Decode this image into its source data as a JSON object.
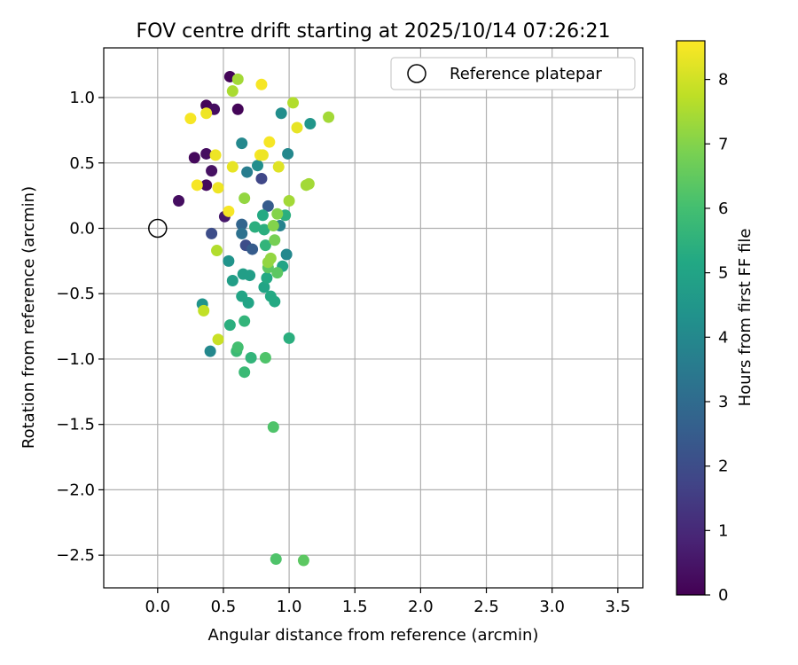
{
  "chart_data": {
    "type": "scatter",
    "title": "FOV centre drift starting at 2025/10/14 07:26:21",
    "xlabel": "Angular distance from reference (arcmin)",
    "ylabel": "Rotation from reference (arcmin)",
    "xlim": [
      -0.41,
      3.69
    ],
    "ylim": [
      -2.75,
      1.38
    ],
    "xticks": [
      0.0,
      0.5,
      1.0,
      1.5,
      2.0,
      2.5,
      3.0,
      3.5
    ],
    "xtick_labels": [
      "0.0",
      "0.5",
      "1.0",
      "1.5",
      "2.0",
      "2.5",
      "3.0",
      "3.5"
    ],
    "yticks": [
      1.0,
      0.5,
      0.0,
      -0.5,
      -1.0,
      -1.5,
      -2.0,
      -2.5
    ],
    "ytick_labels": [
      "1.0",
      "0.5",
      "0.0",
      "−0.5",
      "−1.0",
      "−1.5",
      "−2.0",
      "−2.5"
    ],
    "grid": true,
    "legend": {
      "placement": "top-right",
      "entries": [
        "Reference platepar"
      ]
    },
    "reference_point": {
      "x": 0.0,
      "y": 0.0,
      "label": "Reference platepar"
    },
    "colorbar": {
      "label": "Hours from first FF file",
      "range": [
        0,
        8.6
      ],
      "ticks": [
        0,
        1,
        2,
        3,
        4,
        5,
        6,
        7,
        8
      ],
      "tick_labels": [
        "0",
        "1",
        "2",
        "3",
        "4",
        "5",
        "6",
        "7",
        "8"
      ],
      "colormap": "viridis"
    },
    "points": [
      {
        "x": 0.55,
        "y": 1.16,
        "h": 0.1
      },
      {
        "x": 0.37,
        "y": 0.94,
        "h": 0.1
      },
      {
        "x": 0.43,
        "y": 0.91,
        "h": 0.3
      },
      {
        "x": 0.61,
        "y": 0.91,
        "h": 0.1
      },
      {
        "x": 0.37,
        "y": 0.57,
        "h": 0.3
      },
      {
        "x": 0.28,
        "y": 0.54,
        "h": 0.2
      },
      {
        "x": 0.41,
        "y": 0.44,
        "h": 0.4
      },
      {
        "x": 0.37,
        "y": 0.33,
        "h": 0.2
      },
      {
        "x": 0.16,
        "y": 0.21,
        "h": 0.3
      },
      {
        "x": 0.51,
        "y": 0.09,
        "h": 0.6
      },
      {
        "x": 0.41,
        "y": -0.04,
        "h": 2.0
      },
      {
        "x": 0.79,
        "y": 0.38,
        "h": 1.8
      },
      {
        "x": 0.67,
        "y": -0.13,
        "h": 2.0
      },
      {
        "x": 0.72,
        "y": -0.16,
        "h": 2.5
      },
      {
        "x": 0.64,
        "y": 0.03,
        "h": 2.8
      },
      {
        "x": 0.84,
        "y": 0.17,
        "h": 2.5
      },
      {
        "x": 0.64,
        "y": -0.04,
        "h": 3.2
      },
      {
        "x": 0.68,
        "y": 0.43,
        "h": 3.6
      },
      {
        "x": 0.64,
        "y": 0.65,
        "h": 4.0
      },
      {
        "x": 0.76,
        "y": 0.48,
        "h": 4.2
      },
      {
        "x": 0.99,
        "y": 0.57,
        "h": 4.0
      },
      {
        "x": 0.94,
        "y": 0.88,
        "h": 4.2
      },
      {
        "x": 1.16,
        "y": 0.8,
        "h": 4.5
      },
      {
        "x": 0.93,
        "y": 0.02,
        "h": 3.8
      },
      {
        "x": 0.98,
        "y": -0.2,
        "h": 4.0
      },
      {
        "x": 0.54,
        "y": -0.25,
        "h": 4.4
      },
      {
        "x": 0.34,
        "y": -0.58,
        "h": 4.4
      },
      {
        "x": 0.4,
        "y": -0.94,
        "h": 4.0
      },
      {
        "x": 0.57,
        "y": -0.4,
        "h": 4.8
      },
      {
        "x": 0.65,
        "y": -0.35,
        "h": 4.8
      },
      {
        "x": 0.7,
        "y": -0.36,
        "h": 4.8
      },
      {
        "x": 0.64,
        "y": -0.52,
        "h": 5.0
      },
      {
        "x": 0.69,
        "y": -0.57,
        "h": 5.0
      },
      {
        "x": 0.81,
        "y": -0.45,
        "h": 5.0
      },
      {
        "x": 0.83,
        "y": -0.38,
        "h": 5.2
      },
      {
        "x": 0.86,
        "y": -0.52,
        "h": 5.2
      },
      {
        "x": 0.89,
        "y": -0.56,
        "h": 5.2
      },
      {
        "x": 0.95,
        "y": -0.29,
        "h": 5.0
      },
      {
        "x": 0.8,
        "y": 0.1,
        "h": 5.2
      },
      {
        "x": 0.97,
        "y": 0.1,
        "h": 5.4
      },
      {
        "x": 0.74,
        "y": 0.01,
        "h": 5.4
      },
      {
        "x": 0.81,
        "y": -0.01,
        "h": 5.4
      },
      {
        "x": 0.82,
        "y": -0.13,
        "h": 5.6
      },
      {
        "x": 0.55,
        "y": -0.74,
        "h": 5.4
      },
      {
        "x": 0.66,
        "y": -0.71,
        "h": 5.6
      },
      {
        "x": 1.0,
        "y": -0.84,
        "h": 5.4
      },
      {
        "x": 0.6,
        "y": -0.94,
        "h": 5.8
      },
      {
        "x": 0.61,
        "y": -0.91,
        "h": 6.0
      },
      {
        "x": 0.71,
        "y": -0.99,
        "h": 5.6
      },
      {
        "x": 0.82,
        "y": -0.99,
        "h": 6.2
      },
      {
        "x": 0.66,
        "y": -1.1,
        "h": 5.8
      },
      {
        "x": 0.88,
        "y": -1.52,
        "h": 6.2
      },
      {
        "x": 0.9,
        "y": -2.53,
        "h": 6.2
      },
      {
        "x": 1.11,
        "y": -2.54,
        "h": 6.4
      },
      {
        "x": 0.91,
        "y": -0.34,
        "h": 6.4
      },
      {
        "x": 0.84,
        "y": -0.3,
        "h": 6.4
      },
      {
        "x": 0.89,
        "y": -0.09,
        "h": 6.8
      },
      {
        "x": 0.88,
        "y": 0.02,
        "h": 7.0
      },
      {
        "x": 0.91,
        "y": 0.11,
        "h": 7.0
      },
      {
        "x": 0.84,
        "y": -0.26,
        "h": 7.2
      },
      {
        "x": 0.86,
        "y": -0.23,
        "h": 7.2
      },
      {
        "x": 0.66,
        "y": 0.23,
        "h": 7.2
      },
      {
        "x": 1.0,
        "y": 0.21,
        "h": 7.4
      },
      {
        "x": 1.13,
        "y": 0.33,
        "h": 7.4
      },
      {
        "x": 1.15,
        "y": 0.34,
        "h": 7.4
      },
      {
        "x": 0.61,
        "y": 1.14,
        "h": 7.4
      },
      {
        "x": 0.57,
        "y": 1.05,
        "h": 7.5
      },
      {
        "x": 1.03,
        "y": 0.96,
        "h": 7.6
      },
      {
        "x": 1.3,
        "y": 0.85,
        "h": 7.4
      },
      {
        "x": 0.45,
        "y": -0.17,
        "h": 7.6
      },
      {
        "x": 0.46,
        "y": -0.85,
        "h": 7.9
      },
      {
        "x": 0.35,
        "y": -0.63,
        "h": 7.8
      },
      {
        "x": 0.25,
        "y": 0.84,
        "h": 8.5
      },
      {
        "x": 0.37,
        "y": 0.88,
        "h": 8.4
      },
      {
        "x": 0.79,
        "y": 1.1,
        "h": 8.5
      },
      {
        "x": 1.06,
        "y": 0.77,
        "h": 8.3
      },
      {
        "x": 0.85,
        "y": 0.66,
        "h": 8.5
      },
      {
        "x": 0.44,
        "y": 0.56,
        "h": 8.4
      },
      {
        "x": 0.78,
        "y": 0.56,
        "h": 8.5
      },
      {
        "x": 0.8,
        "y": 0.56,
        "h": 8.4
      },
      {
        "x": 0.57,
        "y": 0.47,
        "h": 8.3
      },
      {
        "x": 0.92,
        "y": 0.47,
        "h": 8.2
      },
      {
        "x": 0.3,
        "y": 0.33,
        "h": 8.5
      },
      {
        "x": 0.46,
        "y": 0.31,
        "h": 8.4
      },
      {
        "x": 0.54,
        "y": 0.13,
        "h": 8.5
      }
    ]
  }
}
